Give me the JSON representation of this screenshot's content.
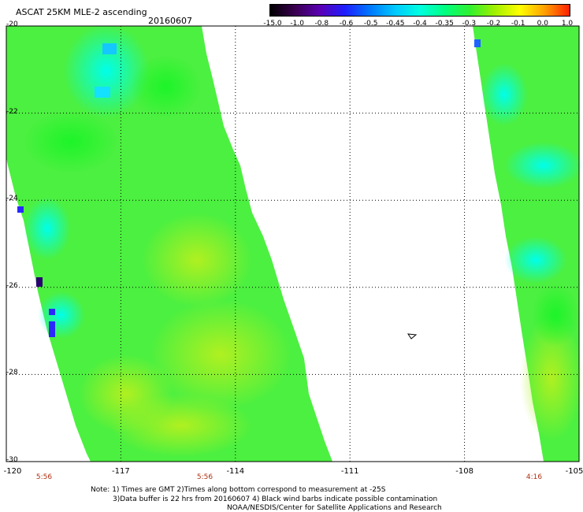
{
  "header": {
    "title": "ASCAT 25KM MLE-2 ascending",
    "date": "20160607"
  },
  "colorbar": {
    "labels": [
      "-15.0",
      "-1.0",
      "-0.8",
      "-0.6",
      "-0.5",
      "-0.45",
      "-0.4",
      "-0.35",
      "-0.3",
      "-0.2",
      "-0.1",
      "0.0",
      "1.0"
    ],
    "colors": [
      "#000000",
      "#3a0050",
      "#5a00b4",
      "#1e1eff",
      "#0078ff",
      "#00c8ff",
      "#00ffe0",
      "#00ff80",
      "#30f030",
      "#a0f000",
      "#ffff00",
      "#ffa000",
      "#ff2000"
    ]
  },
  "map": {
    "lat_labels": [
      "-20",
      "-22",
      "-24",
      "-26",
      "-28",
      "-30"
    ],
    "lon_labels": [
      "-120",
      "-117",
      "-114",
      "-111",
      "-108",
      "-105"
    ],
    "time_labels": [
      "5:56",
      "5:56",
      "4:16"
    ],
    "swath_colors": {
      "base": "#4cf040",
      "light": "#86f028",
      "yellowgreen": "#a6f024",
      "cyan": "#32f8d6",
      "cyan2": "#00ffea",
      "blue": "#2828ff",
      "navy": "#2a0070"
    }
  },
  "footer": {
    "note_line1": "Note: 1) Times are GMT 2)Times along bottom correspond to measurement at -25S",
    "note_line2": "3)Data buffer is 22 hrs from 20160607 4) Black wind barbs indicate possible contamination",
    "credit": "NOAA/NESDIS/Center for Satellite Applications and Research"
  }
}
